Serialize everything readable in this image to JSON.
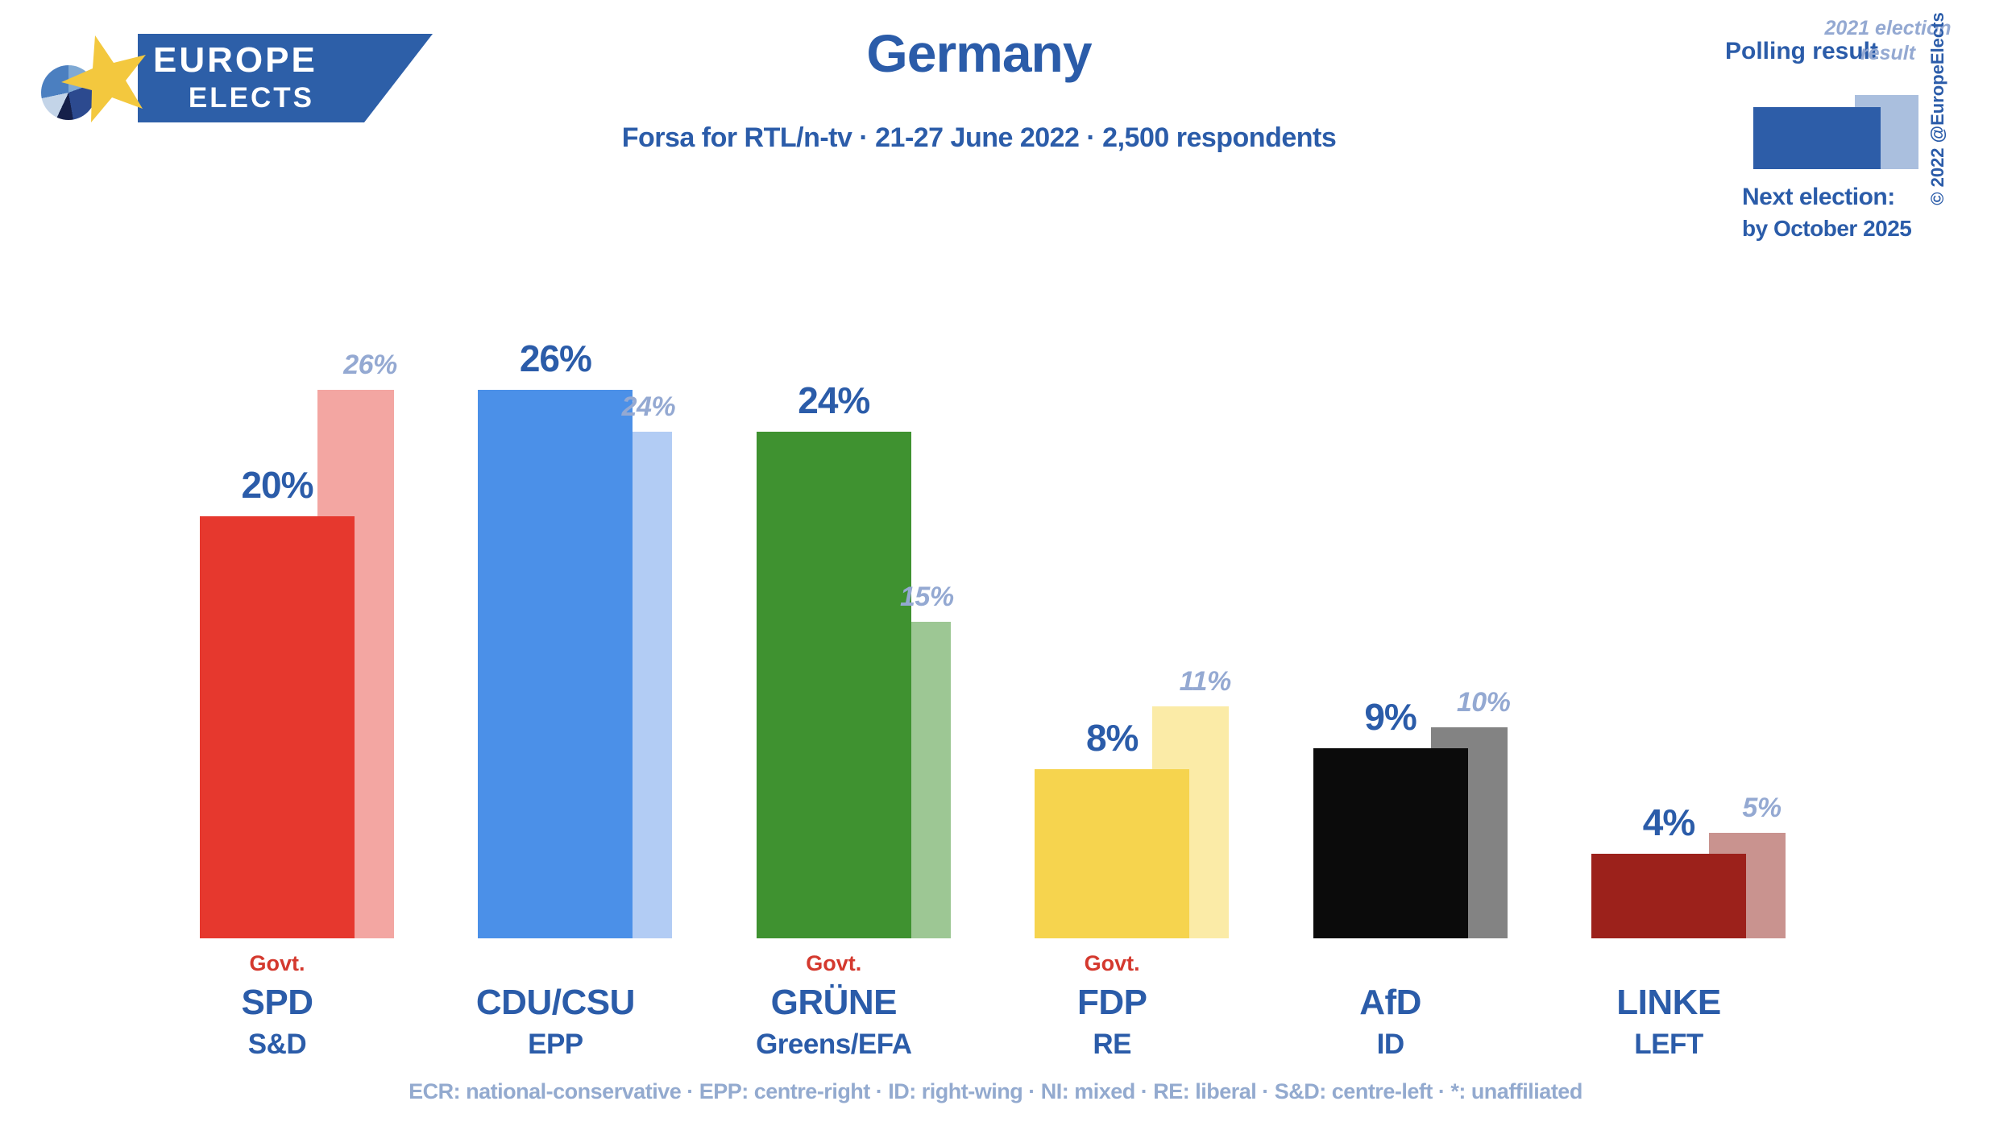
{
  "brand": {
    "word1": "EUROPE",
    "word2": "ELECTS"
  },
  "header": {
    "title": "Germany",
    "subtitle": "Forsa for RTL/n-tv · 21-27 June 2022 · 2,500 respondents"
  },
  "legend": {
    "polling_label": "Polling result",
    "election_label": "2021 election result",
    "copyright": "© 2022 @EuropeElects",
    "next_election_label": "Next election:",
    "next_election_value": "by October 2025"
  },
  "footer": {
    "glossary": "ECR: national-conservative · EPP: centre-right · ID: right-wing · NI: mixed · RE: liberal · S&D: centre-left · *: unaffiliated"
  },
  "colors": {
    "title_blue": "#2b5ca9",
    "muted_blue": "#94a9d2",
    "footer_blue": "#93aacf",
    "govt_red": "#d4392e",
    "legend_dark": "#2d5da8",
    "legend_light": "#aabfde",
    "banner_blue": "#2d5fa8",
    "star_yellow": "#f3c83e"
  },
  "chart_data": {
    "type": "bar",
    "unit": "%",
    "title": "Germany",
    "subtitle": "Forsa for RTL/n-tv · 21-27 June 2022 · 2,500 respondents",
    "legend_position": "top-right",
    "grid": false,
    "ylim": [
      0,
      28
    ],
    "categories": [
      "SPD",
      "CDU/CSU",
      "GRÜNE",
      "FDP",
      "AfD",
      "LINKE"
    ],
    "series": [
      {
        "name": "Polling result",
        "values": [
          20,
          26,
          24,
          8,
          9,
          4
        ]
      },
      {
        "name": "2021 election result",
        "values": [
          26,
          24,
          15,
          11,
          10,
          5
        ]
      }
    ],
    "govt_label": "Govt.",
    "parties": [
      {
        "name": "SPD",
        "eu_group": "S&D",
        "in_government": true,
        "polling": "20%",
        "election": "26%",
        "polling_value": 20,
        "election_value": 26,
        "color": "#e6382e",
        "light_color": "#f3a6a2"
      },
      {
        "name": "CDU/CSU",
        "eu_group": "EPP",
        "in_government": false,
        "polling": "26%",
        "election": "24%",
        "polling_value": 26,
        "election_value": 24,
        "color": "#4b90e8",
        "light_color": "#b2ccf4"
      },
      {
        "name": "GRÜNE",
        "eu_group": "Greens/EFA",
        "in_government": true,
        "polling": "24%",
        "election": "15%",
        "polling_value": 24,
        "election_value": 15,
        "color": "#3f9230",
        "light_color": "#9dc794"
      },
      {
        "name": "FDP",
        "eu_group": "RE",
        "in_government": true,
        "polling": "8%",
        "election": "11%",
        "polling_value": 8,
        "election_value": 11,
        "color": "#f6d44e",
        "light_color": "#fbeba7"
      },
      {
        "name": "AfD",
        "eu_group": "ID",
        "in_government": false,
        "polling": "9%",
        "election": "10%",
        "polling_value": 9,
        "election_value": 10,
        "color": "#0b0b0b",
        "light_color": "#838383"
      },
      {
        "name": "LINKE",
        "eu_group": "LEFT",
        "in_government": false,
        "polling": "4%",
        "election": "5%",
        "polling_value": 4,
        "election_value": 5,
        "color": "#9c211b",
        "light_color": "#c9938f"
      }
    ]
  }
}
